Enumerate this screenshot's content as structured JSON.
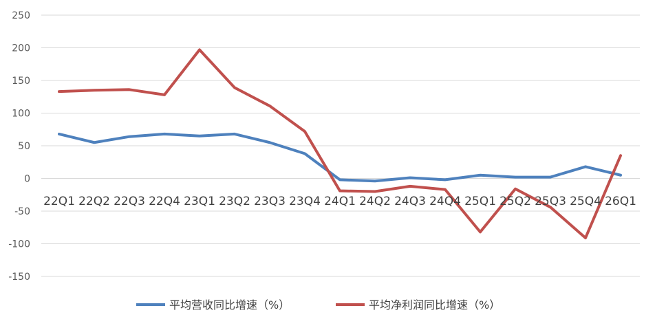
{
  "chart_data": {
    "type": "line",
    "title": "",
    "xlabel": "",
    "ylabel": "",
    "categories": [
      "22Q1",
      "22Q2",
      "22Q3",
      "22Q4",
      "23Q1",
      "23Q2",
      "23Q3",
      "23Q4",
      "24Q1",
      "24Q2",
      "24Q3",
      "24Q4",
      "25Q1",
      "25Q2",
      "25Q3",
      "25Q4",
      "26Q1"
    ],
    "ylim": [
      -150,
      250
    ],
    "yticks": [
      -150,
      -100,
      -50,
      0,
      50,
      100,
      150,
      200,
      250
    ],
    "ytick_labels": [
      "-150",
      "-100",
      "-50",
      "0",
      "50",
      "100",
      "150",
      "200",
      "250"
    ],
    "grid": true,
    "legend_position": "bottom",
    "series": [
      {
        "name": "平均营收同比增速（%）",
        "color": "#4E81BD",
        "values": [
          68,
          55,
          64,
          68,
          65,
          68,
          55,
          38,
          -2,
          -4,
          1,
          -2,
          5,
          2,
          2,
          18,
          5
        ]
      },
      {
        "name": "平均净利润同比增速（%）",
        "color": "#C0504D",
        "values": [
          133,
          135,
          136,
          128,
          197,
          139,
          111,
          72,
          -19,
          -20,
          -12,
          -17,
          -82,
          -16,
          -44,
          -91,
          35
        ]
      }
    ]
  }
}
